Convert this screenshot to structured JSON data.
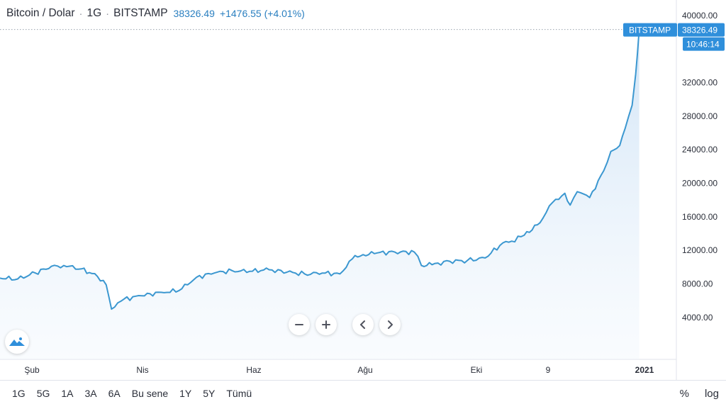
{
  "header": {
    "symbol": "Bitcoin / Dolar",
    "interval": "1G",
    "exchange": "BITSTAMP",
    "price": "38326.49",
    "change": "+1476.55 (+4.01%)"
  },
  "price_tag": {
    "label": "BITSTAMP",
    "value": "38326.49",
    "time": "10:46:14"
  },
  "range_buttons": [
    "1G",
    "5G",
    "1A",
    "3A",
    "6A",
    "Bu sene",
    "1Y",
    "5Y",
    "Tümü"
  ],
  "scale_buttons": {
    "percent": "%",
    "log": "log"
  },
  "colors": {
    "line": "#3b97d0",
    "fill_top": "#cfe3f6",
    "tag_bg": "#2f8fdb",
    "grid_dots": "#9aa3ad"
  },
  "chart_data": {
    "type": "area",
    "title": "Bitcoin / Dolar",
    "xlabel": "",
    "ylabel": "",
    "ylim": [
      0,
      43000
    ],
    "y_ticks": [
      "4000.00",
      "8000.00",
      "12000.00",
      "16000.00",
      "20000.00",
      "24000.00",
      "28000.00",
      "32000.00",
      "40000.00"
    ],
    "x_ticks": [
      "Şub",
      "Nis",
      "Haz",
      "Ağu",
      "Eki",
      "9",
      "2021"
    ],
    "last_value": 38326.49,
    "series": [
      {
        "x": [
          "2020-01-10",
          "2020-01-20",
          "2020-01-30",
          "2020-02-08",
          "2020-02-15",
          "2020-02-25",
          "2020-03-05",
          "2020-03-10",
          "2020-03-13",
          "2020-03-20",
          "2020-03-30",
          "2020-04-10",
          "2020-04-20",
          "2020-04-30",
          "2020-05-10",
          "2020-05-20",
          "2020-05-30",
          "2020-06-10",
          "2020-06-20",
          "2020-06-30",
          "2020-07-10",
          "2020-07-20",
          "2020-07-27",
          "2020-08-02",
          "2020-08-10",
          "2020-08-20",
          "2020-08-31",
          "2020-09-04",
          "2020-09-10",
          "2020-09-20",
          "2020-09-30",
          "2020-10-10",
          "2020-10-20",
          "2020-10-25",
          "2020-11-01",
          "2020-11-10",
          "2020-11-17",
          "2020-11-24",
          "2020-11-27",
          "2020-12-01",
          "2020-12-08",
          "2020-12-16",
          "2020-12-20",
          "2020-12-25",
          "2020-12-28",
          "2021-01-01",
          "2021-01-03",
          "2021-01-05"
        ],
        "y": [
          8700,
          8600,
          9300,
          10100,
          10200,
          9800,
          8900,
          7900,
          5000,
          6200,
          6600,
          7000,
          7200,
          8800,
          9300,
          9600,
          9500,
          9700,
          9400,
          9200,
          9300,
          9200,
          11000,
          11500,
          11700,
          11800,
          11800,
          10200,
          10300,
          10700,
          10800,
          11100,
          12900,
          13100,
          13800,
          15300,
          17700,
          18800,
          17400,
          19000,
          18300,
          21500,
          23800,
          24500,
          26500,
          29300,
          33000,
          38326
        ]
      }
    ]
  }
}
